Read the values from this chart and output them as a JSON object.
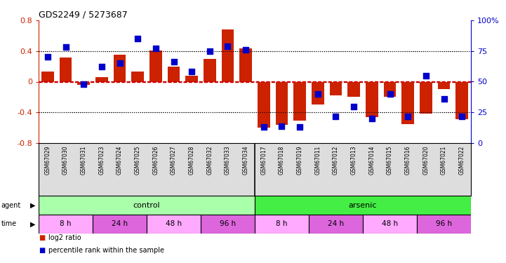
{
  "title": "GDS2249 / 5273687",
  "samples": [
    "GSM67029",
    "GSM67030",
    "GSM67031",
    "GSM67023",
    "GSM67024",
    "GSM67025",
    "GSM67026",
    "GSM67027",
    "GSM67028",
    "GSM67032",
    "GSM67033",
    "GSM67034",
    "GSM67017",
    "GSM67018",
    "GSM67019",
    "GSM67011",
    "GSM67012",
    "GSM67013",
    "GSM67014",
    "GSM67015",
    "GSM67016",
    "GSM67020",
    "GSM67021",
    "GSM67022"
  ],
  "log2_ratio": [
    0.13,
    0.32,
    -0.04,
    0.06,
    0.35,
    0.13,
    0.41,
    0.2,
    0.08,
    0.3,
    0.68,
    0.43,
    -0.6,
    -0.56,
    -0.51,
    -0.3,
    -0.18,
    -0.2,
    -0.46,
    -0.2,
    -0.55,
    -0.42,
    -0.1,
    -0.49
  ],
  "percentile": [
    70,
    78,
    48,
    62,
    65,
    85,
    77,
    66,
    58,
    75,
    79,
    76,
    13,
    14,
    13,
    40,
    22,
    30,
    20,
    40,
    22,
    55,
    36,
    22
  ],
  "bar_color": "#cc2200",
  "dot_color": "#0000cc",
  "ylim_left": [
    -0.8,
    0.8
  ],
  "ylim_right": [
    0,
    100
  ],
  "zero_line_color": "#cc0000",
  "right_axis_ticks": [
    0,
    25,
    50,
    75,
    100
  ],
  "right_axis_labels": [
    "0",
    "25",
    "50",
    "75",
    "100%"
  ],
  "agent_groups": [
    {
      "label": "control",
      "start": 0,
      "end": 11,
      "color": "#aaffaa"
    },
    {
      "label": "arsenic",
      "start": 12,
      "end": 23,
      "color": "#44ee44"
    }
  ],
  "time_groups": [
    {
      "label": "8 h",
      "start": 0,
      "end": 2,
      "color": "#ffaaff"
    },
    {
      "label": "24 h",
      "start": 3,
      "end": 5,
      "color": "#dd66dd"
    },
    {
      "label": "48 h",
      "start": 6,
      "end": 8,
      "color": "#ffaaff"
    },
    {
      "label": "96 h",
      "start": 9,
      "end": 11,
      "color": "#dd66dd"
    },
    {
      "label": "8 h",
      "start": 12,
      "end": 14,
      "color": "#ffaaff"
    },
    {
      "label": "24 h",
      "start": 15,
      "end": 17,
      "color": "#dd66dd"
    },
    {
      "label": "48 h",
      "start": 18,
      "end": 20,
      "color": "#ffaaff"
    },
    {
      "label": "96 h",
      "start": 21,
      "end": 23,
      "color": "#dd66dd"
    }
  ],
  "legend_items": [
    {
      "color": "#cc2200",
      "label": "log2 ratio"
    },
    {
      "color": "#0000cc",
      "label": "percentile rank within the sample"
    }
  ],
  "label_bg_color": "#dddddd",
  "background_color": "#ffffff",
  "bar_width": 0.7,
  "dot_size": 30
}
